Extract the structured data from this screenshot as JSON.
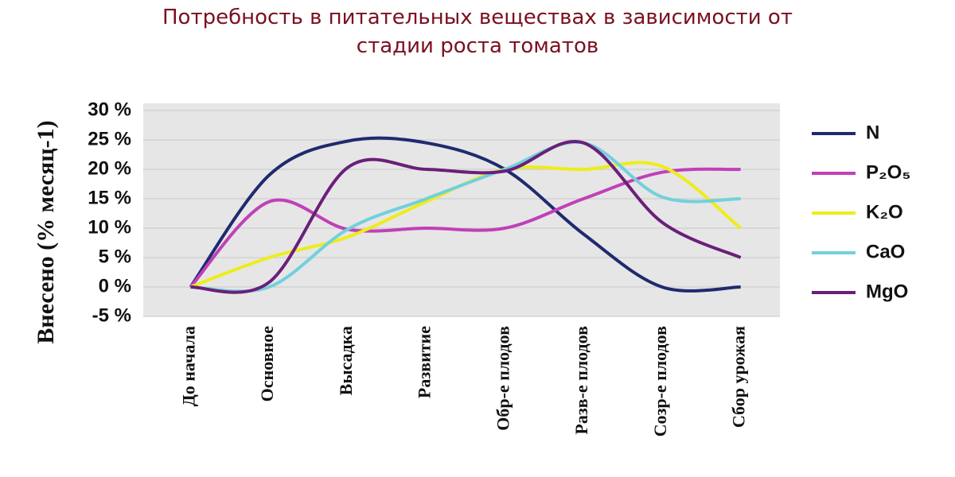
{
  "chart_data": {
    "type": "line",
    "title": "Потребность в питательных веществах  в зависимости от стадии роста томатов",
    "y_label": "Внесено (% месяц-1)",
    "categories": [
      "До начала",
      "Основное",
      "Высадка",
      "Развитие",
      "Обр-е плодов",
      "Разв-е плодов",
      "Созр-е плодов",
      "Сбор урожая"
    ],
    "series": [
      {
        "name": "N",
        "color": "#1f2a6e",
        "values": [
          0,
          19,
          24.8,
          24.5,
          20,
          9,
          0,
          0
        ]
      },
      {
        "name": "P₂O₅",
        "color": "#c040b8",
        "values": [
          0,
          14.5,
          9.8,
          10,
          10,
          15,
          19.5,
          20
        ]
      },
      {
        "name": "K₂O",
        "color": "#eded1a",
        "values": [
          0,
          5,
          8.5,
          14.5,
          20,
          20,
          20.5,
          10
        ]
      },
      {
        "name": "CaO",
        "color": "#72d0dc",
        "values": [
          0,
          0,
          9.8,
          15,
          20,
          24.5,
          15.3,
          15
        ]
      },
      {
        "name": "MgO",
        "color": "#6a1f7a",
        "values": [
          0,
          0.8,
          20.3,
          20,
          19.7,
          24.5,
          11,
          5
        ]
      }
    ],
    "ylim": [
      -5,
      30
    ],
    "yticks": [
      {
        "value": -5,
        "label": "-5 %"
      },
      {
        "value": 0,
        "label": "0 %"
      },
      {
        "value": 5,
        "label": "5 %"
      },
      {
        "value": 10,
        "label": "10 %"
      },
      {
        "value": 15,
        "label": "15 %"
      },
      {
        "value": 20,
        "label": "20 %"
      },
      {
        "value": 25,
        "label": "25 %"
      },
      {
        "value": 30,
        "label": "30 %"
      }
    ],
    "grid": true,
    "legend": "right"
  }
}
